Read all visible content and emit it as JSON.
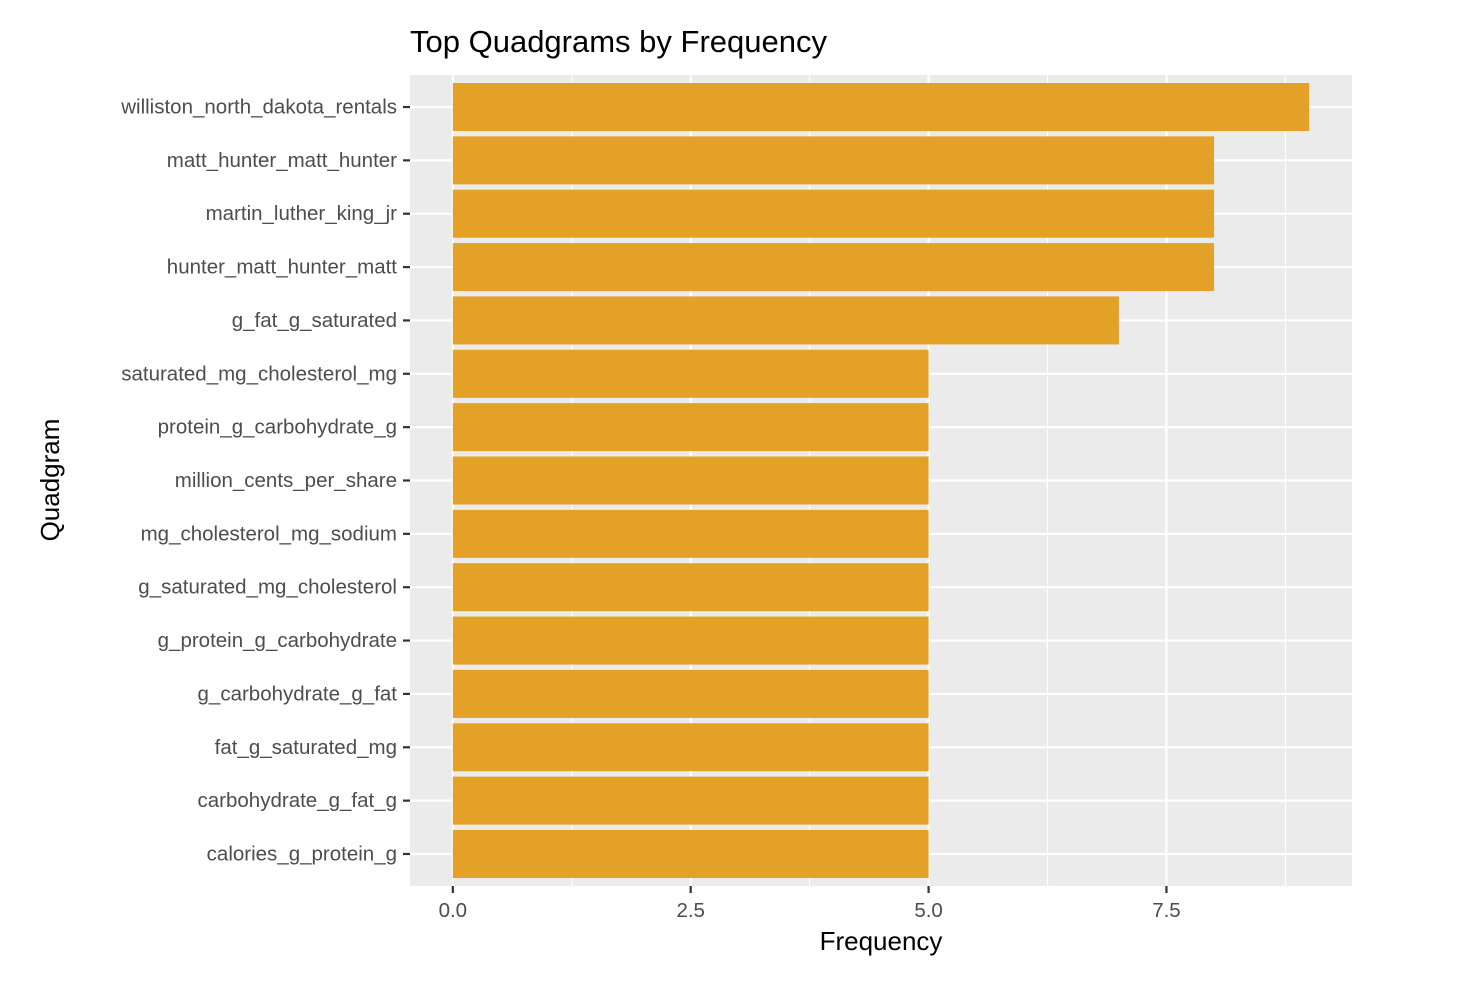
{
  "chart_data": {
    "type": "bar",
    "orientation": "horizontal",
    "title": "Top Quadgrams by Frequency",
    "xlabel": "Frequency",
    "ylabel": "Quadgram",
    "categories": [
      "williston_north_dakota_rentals",
      "matt_hunter_matt_hunter",
      "martin_luther_king_jr",
      "hunter_matt_hunter_matt",
      "g_fat_g_saturated",
      "saturated_mg_cholesterol_mg",
      "protein_g_carbohydrate_g",
      "million_cents_per_share",
      "mg_cholesterol_mg_sodium",
      "g_saturated_mg_cholesterol",
      "g_protein_g_carbohydrate",
      "g_carbohydrate_g_fat",
      "fat_g_saturated_mg",
      "carbohydrate_g_fat_g",
      "calories_g_protein_g"
    ],
    "values": [
      9,
      8,
      8,
      8,
      7,
      5,
      5,
      5,
      5,
      5,
      5,
      5,
      5,
      5,
      5
    ],
    "x_ticks": [
      0,
      2.5,
      5,
      7.5
    ],
    "x_tick_labels": [
      "0.0",
      "2.5",
      "5.0",
      "7.5"
    ],
    "xlim": [
      -0.45,
      9.45
    ],
    "grid": true,
    "legend": "none",
    "colors": {
      "bar": "#E3A128",
      "panel_background": "#EBEBEB",
      "grid": "#FFFFFF"
    }
  }
}
